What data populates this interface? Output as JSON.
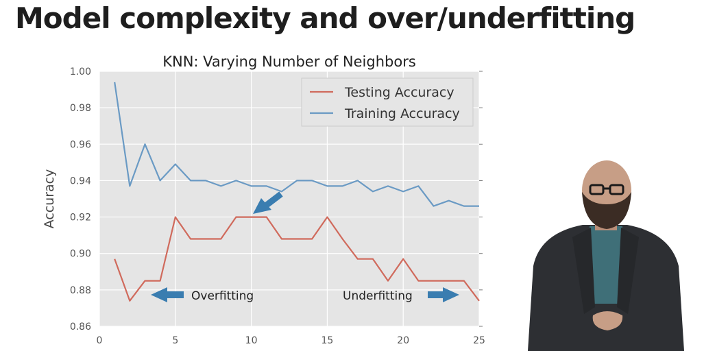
{
  "slide": {
    "title": "Model complexity and over/underfitting"
  },
  "annotations": {
    "overfitting": "Overfitting",
    "underfitting": "Underfitting"
  },
  "colors": {
    "testing": "#d06a5c",
    "training": "#6a9ac4",
    "plot_bg": "#e5e5e5",
    "arrow": "#3a7db0"
  },
  "chart_data": {
    "type": "line",
    "title": "KNN: Varying Number of Neighbors",
    "xlabel": "",
    "ylabel": "Accuracy",
    "xlim": [
      0,
      25
    ],
    "ylim": [
      0.86,
      1.0
    ],
    "xticks": [
      0,
      5,
      10,
      15,
      20,
      25
    ],
    "yticks": [
      0.86,
      0.88,
      0.9,
      0.92,
      0.94,
      0.96,
      0.98,
      1.0
    ],
    "grid": true,
    "legend_position": "top-right",
    "x": [
      1,
      2,
      3,
      4,
      5,
      6,
      7,
      8,
      9,
      10,
      11,
      12,
      13,
      14,
      15,
      16,
      17,
      18,
      19,
      20,
      21,
      22,
      23,
      24,
      25
    ],
    "series": [
      {
        "name": "Testing Accuracy",
        "values": [
          0.897,
          0.874,
          0.885,
          0.885,
          0.92,
          0.908,
          0.908,
          0.908,
          0.92,
          0.92,
          0.92,
          0.908,
          0.908,
          0.908,
          0.92,
          0.908,
          0.897,
          0.897,
          0.885,
          0.897,
          0.885,
          0.885,
          0.885,
          0.885,
          0.874
        ]
      },
      {
        "name": "Training Accuracy",
        "values": [
          0.994,
          0.937,
          0.96,
          0.94,
          0.949,
          0.94,
          0.94,
          0.937,
          0.94,
          0.937,
          0.937,
          0.934,
          0.94,
          0.94,
          0.937,
          0.937,
          0.94,
          0.934,
          0.937,
          0.934,
          0.937,
          0.926,
          0.929,
          0.926,
          0.926
        ]
      }
    ]
  }
}
